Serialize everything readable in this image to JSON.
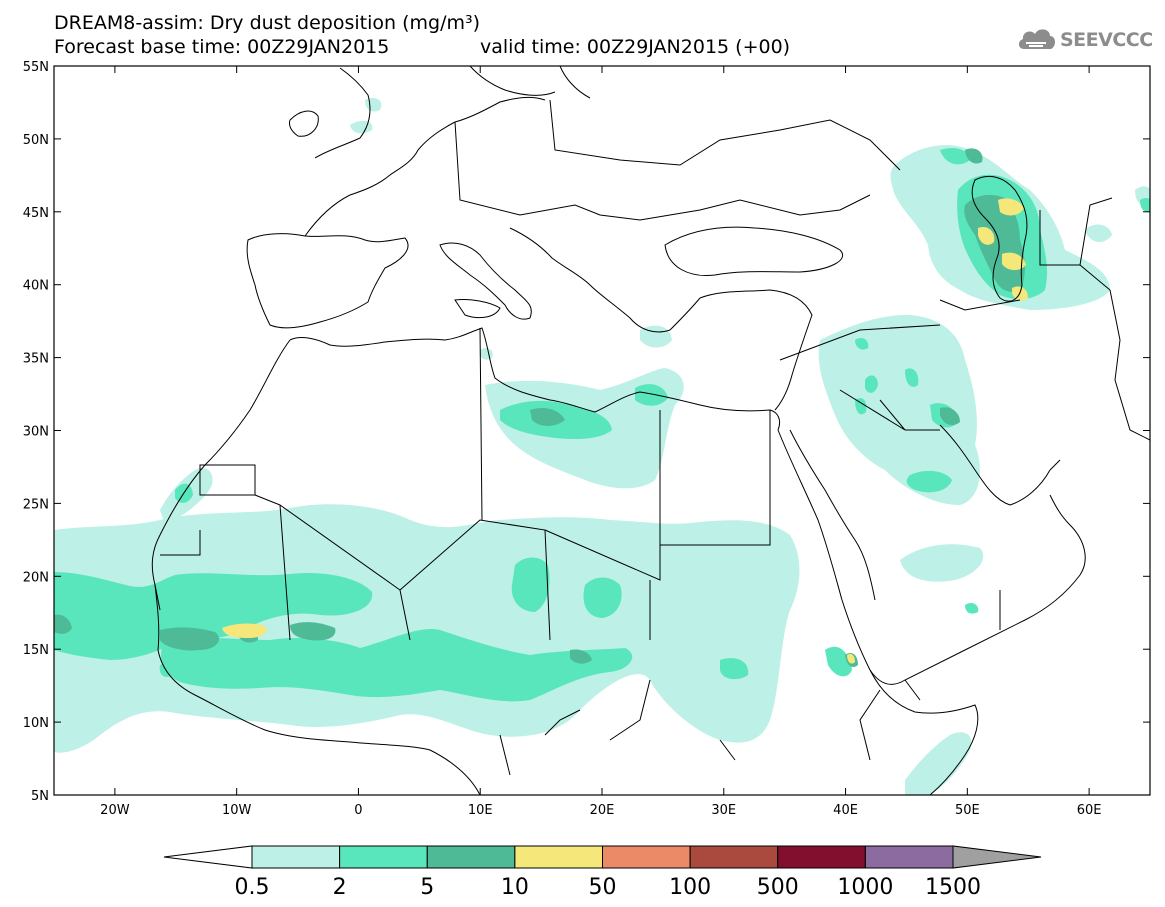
{
  "header": {
    "title_line1": "DREAM8-assim: Dry dust deposition (mg/m³)",
    "title_line2": "Forecast base time: 00Z29JAN2015",
    "valid_time": "valid time: 00Z29JAN2015 (+00)"
  },
  "logo": {
    "text": "SEEVCCC",
    "icon": "cloud-icon"
  },
  "map": {
    "lon_range": [
      -25,
      65
    ],
    "lat_range": [
      5,
      55
    ],
    "lat_ticks": [
      {
        "value": 55,
        "label": "55N"
      },
      {
        "value": 50,
        "label": "50N"
      },
      {
        "value": 45,
        "label": "45N"
      },
      {
        "value": 40,
        "label": "40N"
      },
      {
        "value": 35,
        "label": "35N"
      },
      {
        "value": 30,
        "label": "30N"
      },
      {
        "value": 25,
        "label": "25N"
      },
      {
        "value": 20,
        "label": "20N"
      },
      {
        "value": 15,
        "label": "15N"
      },
      {
        "value": 10,
        "label": "10N"
      },
      {
        "value": 5,
        "label": "5N"
      }
    ],
    "lon_ticks": [
      {
        "value": -20,
        "label": "20W"
      },
      {
        "value": -10,
        "label": "10W"
      },
      {
        "value": 0,
        "label": "0"
      },
      {
        "value": 10,
        "label": "10E"
      },
      {
        "value": 20,
        "label": "20E"
      },
      {
        "value": 30,
        "label": "30E"
      },
      {
        "value": 40,
        "label": "40E"
      },
      {
        "value": 50,
        "label": "50E"
      },
      {
        "value": 60,
        "label": "60E"
      }
    ]
  },
  "colorbar": {
    "levels": [
      "0.5",
      "2",
      "5",
      "10",
      "50",
      "100",
      "500",
      "1000",
      "1500"
    ],
    "colors": [
      "#bdf0e6",
      "#5ae6bc",
      "#4ebb96",
      "#f5e77a",
      "#eb8a66",
      "#aa4a3e",
      "#820f2d",
      "#8c6ba0"
    ],
    "under_color": "#ffffff",
    "over_color": "#a0a0a0"
  }
}
